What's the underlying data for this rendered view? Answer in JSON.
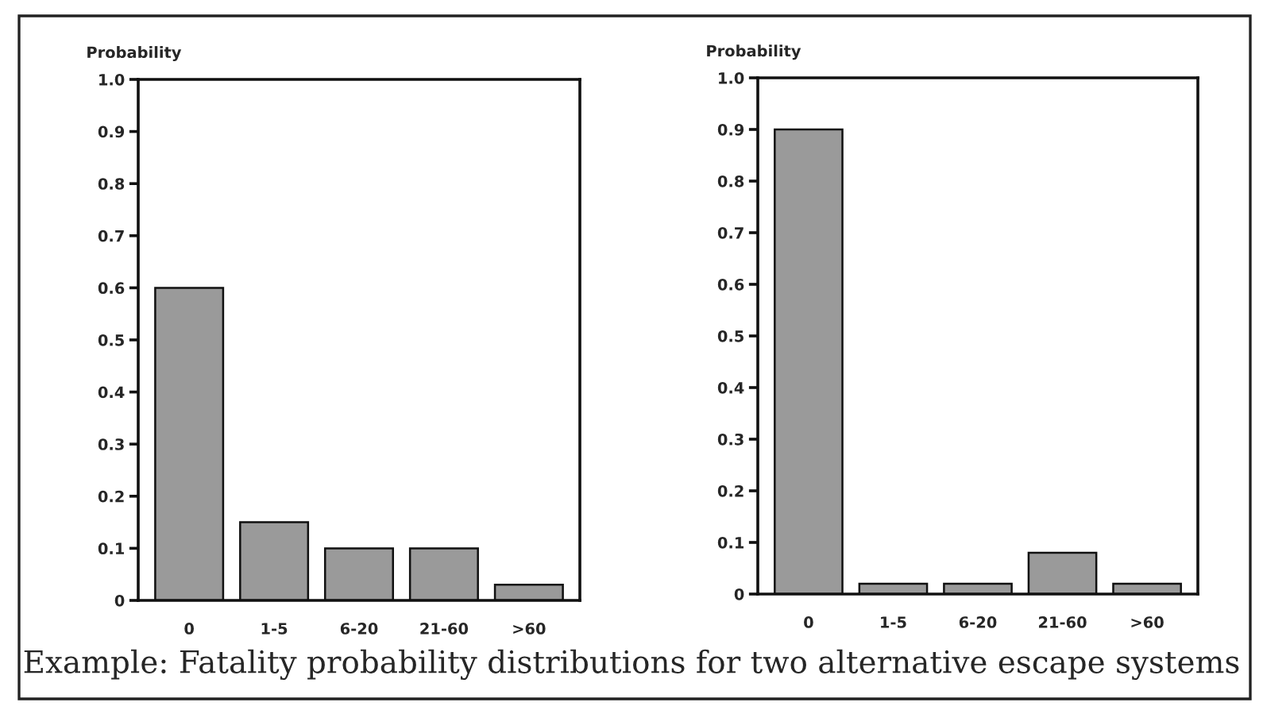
{
  "chart_data": [
    {
      "type": "bar",
      "ylabel": "Probability",
      "categories": [
        "0",
        "1-5",
        "6-20",
        "21-60",
        ">60"
      ],
      "values": [
        0.6,
        0.15,
        0.1,
        0.1,
        0.03
      ],
      "color": "#9a9a9a",
      "ylim": [
        0,
        1
      ],
      "yticks": [
        0,
        0.1,
        0.2,
        0.3,
        0.4,
        0.5,
        0.6,
        0.7,
        0.8,
        0.9,
        {
          "value": 1,
          "label": "1.0"
        }
      ],
      "grid": false,
      "annotations": [
        "Example: Fatality probability distributions for two alternative escape systems"
      ]
    },
    {
      "type": "bar",
      "ylabel": "Probability",
      "categories": [
        "0",
        "1-5",
        "6-20",
        "21-60",
        ">60"
      ],
      "values": [
        0.9,
        0.02,
        0.02,
        0.08,
        0.02
      ],
      "color": "#9a9a9a",
      "ylim": [
        0,
        1
      ],
      "yticks": [
        0,
        0.1,
        0.2,
        0.3,
        0.4,
        0.5,
        0.6,
        0.7,
        0.8,
        0.9,
        {
          "value": 1,
          "label": "1.0"
        }
      ],
      "grid": false
    }
  ]
}
